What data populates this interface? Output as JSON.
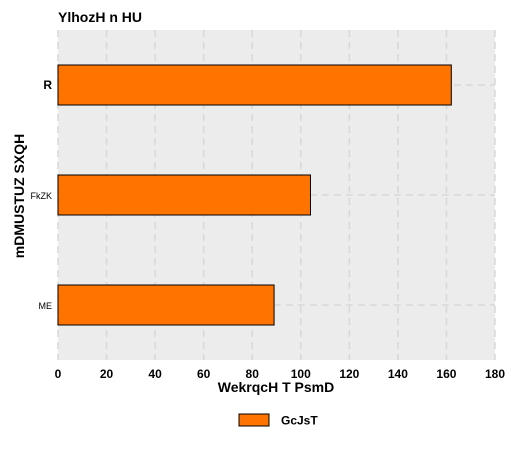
{
  "chart_data": {
    "type": "bar",
    "orientation": "horizontal",
    "title": "YlhozH  n HU",
    "xlabel": "WekrqcH T PsmD",
    "ylabel": "mDMUSTUZ  SXQH",
    "categories": [
      "R",
      "FkZK",
      "ME"
    ],
    "series": [
      {
        "name": "GcJsT",
        "values": [
          162,
          104,
          89
        ],
        "color": "#ff7300"
      }
    ],
    "xlim": [
      0,
      180
    ],
    "xticks": [
      0,
      20,
      40,
      60,
      80,
      100,
      120,
      140,
      160,
      180
    ],
    "grid": true,
    "legend_position": "bottom-center",
    "background_color": "#ececec"
  }
}
